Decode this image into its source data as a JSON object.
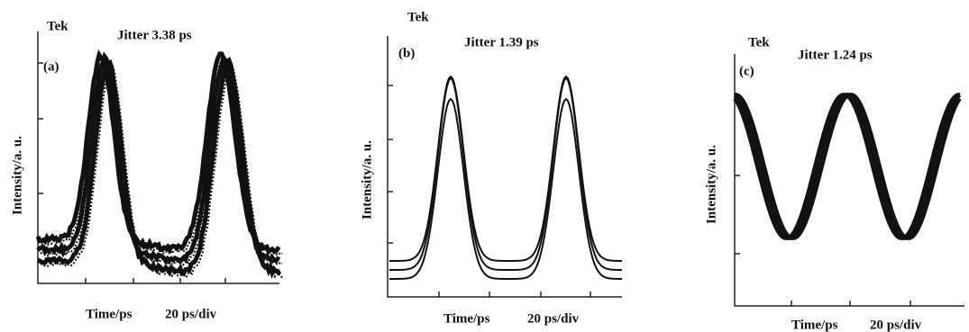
{
  "panels": [
    {
      "tek": "Tek",
      "label": "(a)",
      "jitter": "Jitter 3.38 ps",
      "y_axis": "Intensity/a. u.",
      "x_axis": "Time/ps",
      "scale": "20 ps/div"
    },
    {
      "tek": "Tek",
      "label": "(b)",
      "jitter": "Jitter 1.39 ps",
      "y_axis": "Intensity/a. u.",
      "x_axis": "Time/ps",
      "scale": "20 ps/div"
    },
    {
      "tek": "Tek",
      "label": "(c)",
      "jitter": "Jitter 1.24 ps",
      "y_axis": "Intensity/a. u.",
      "x_axis": "Time/ps",
      "scale": "20 ps/div"
    }
  ]
}
